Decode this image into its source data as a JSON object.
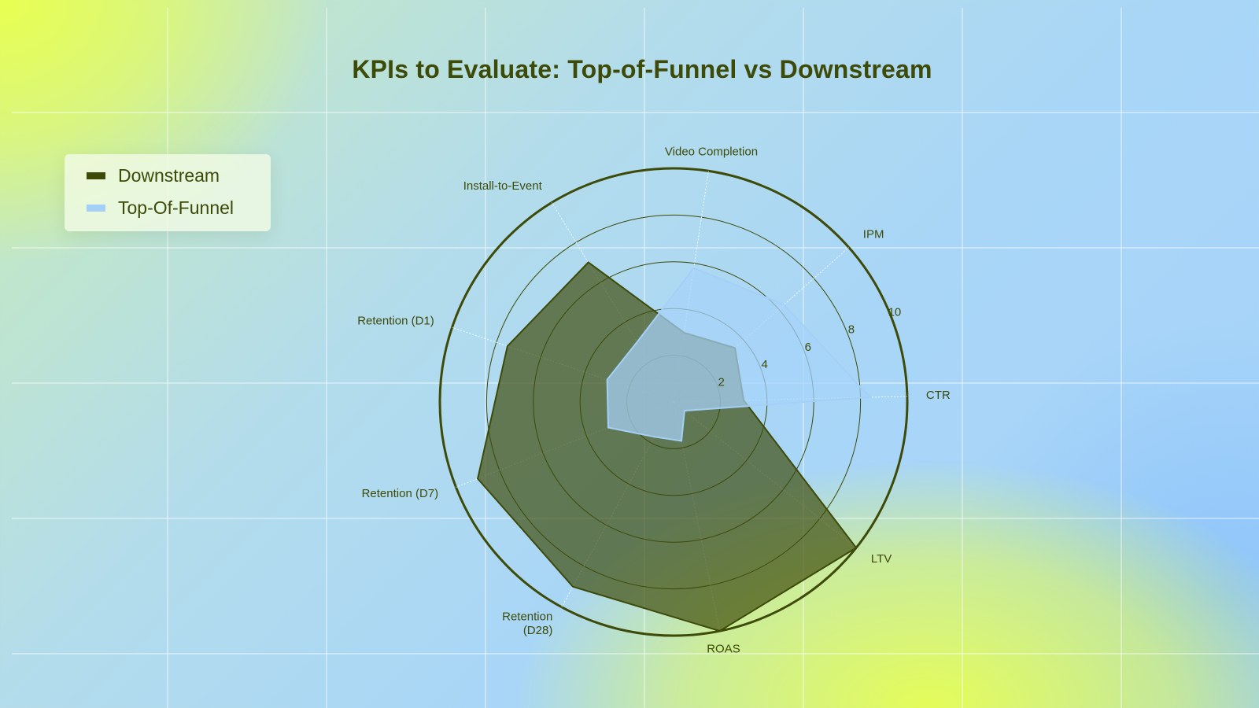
{
  "chart_data": {
    "type": "radar",
    "title": "KPIs to Evaluate: Top-of-Funnel vs Downstream",
    "axes": [
      "CTR",
      "IPM",
      "Video Completion",
      "Install-to-Event",
      "Retention (D1)",
      "Retention (D7)",
      "Retention (D28)",
      "ROAS",
      "LTV"
    ],
    "radial_ticks": [
      2,
      4,
      6,
      8,
      10
    ],
    "rlim": [
      0,
      10
    ],
    "legend_position": "top-left",
    "series": [
      {
        "name": "Downstream",
        "color": "#3d4a08",
        "values": [
          3.0,
          3.5,
          3.0,
          7.0,
          7.5,
          9.0,
          9.0,
          10.0,
          10.0
        ]
      },
      {
        "name": "Top-Of-Funnel",
        "color": "#a4d0f7",
        "values": [
          8.4,
          6.3,
          5.8,
          3.0,
          3.0,
          3.0,
          1.7,
          1.7,
          0.6
        ]
      }
    ]
  }
}
